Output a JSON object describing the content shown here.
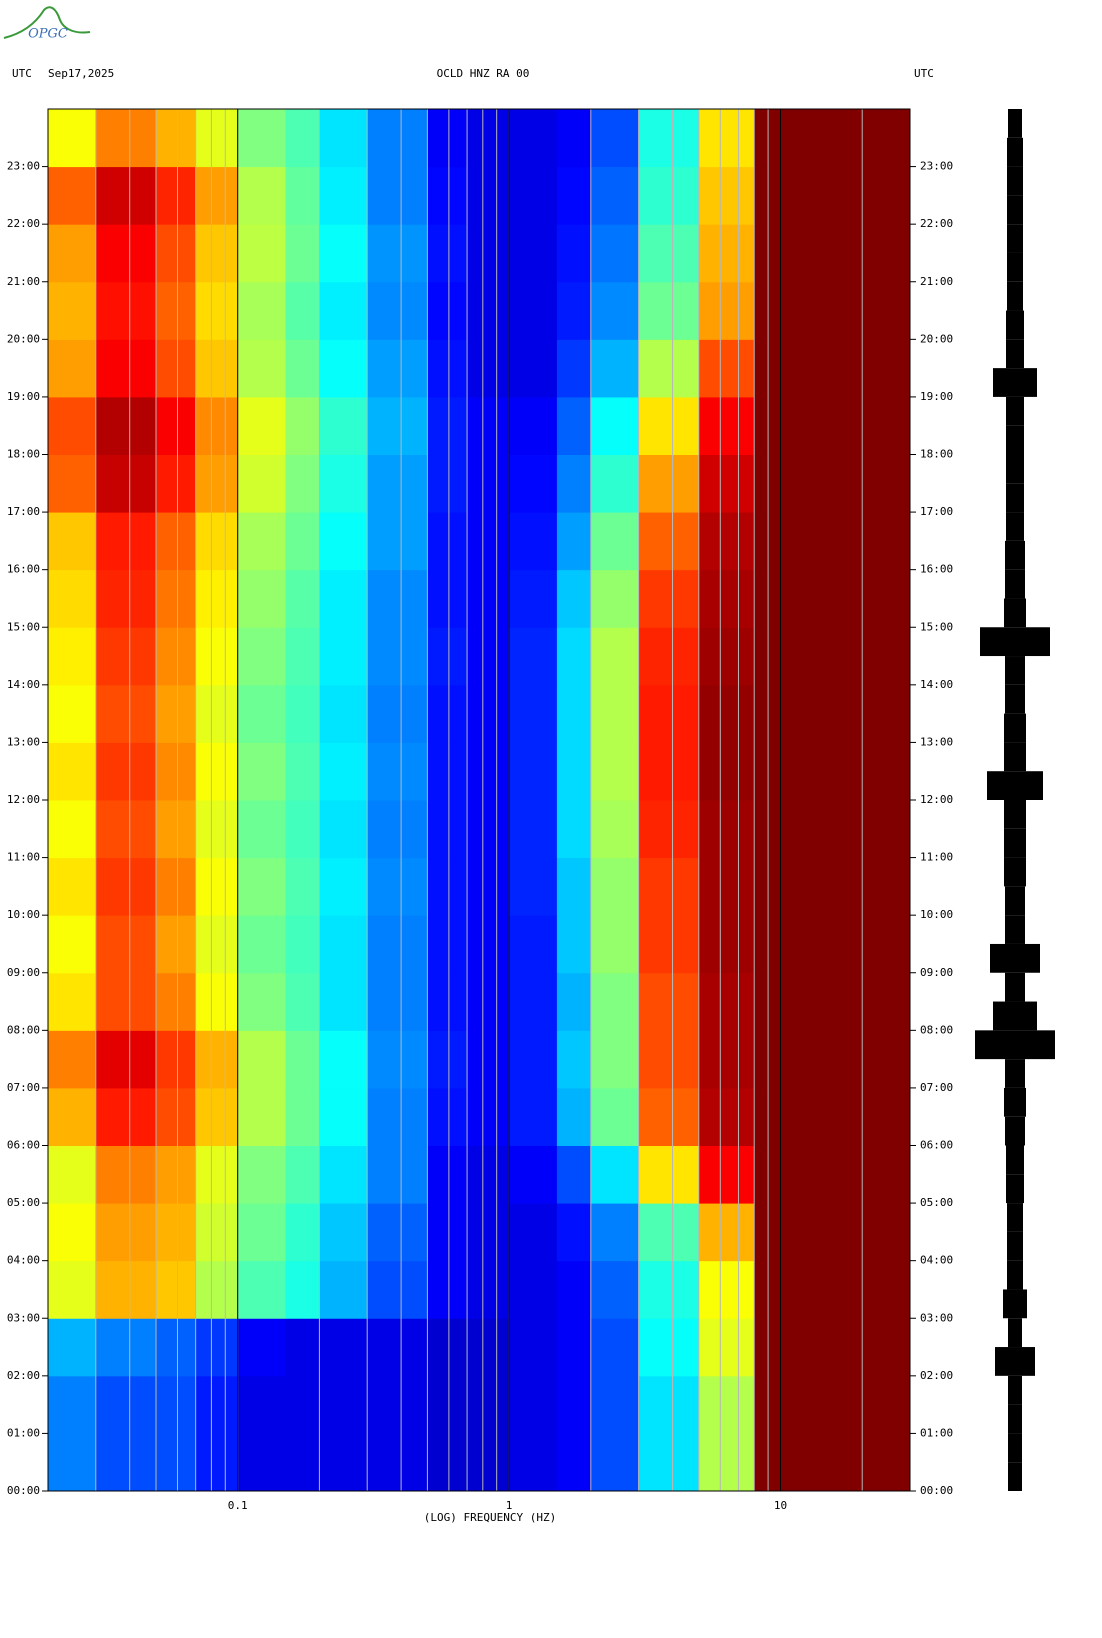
{
  "chart_data": {
    "type": "spectrogram",
    "logo": "OPGC",
    "timezone": "UTC",
    "date": "Sep17,2025",
    "title": "OCLD HNZ RA 00",
    "xlabel": "(LOG) FREQUENCY (HZ)",
    "xscale": "log",
    "colormap": "jet",
    "xlim": [
      0.02,
      30
    ],
    "xticks": [
      0.1,
      1,
      10
    ],
    "xgrid": [
      0.03,
      0.04,
      0.05,
      0.06,
      0.07,
      0.08,
      0.09,
      0.1,
      0.2,
      0.3,
      0.4,
      0.5,
      0.6,
      0.7,
      0.8,
      0.9,
      1,
      2,
      3,
      4,
      5,
      6,
      7,
      8,
      9,
      10,
      20
    ],
    "ylim": [
      0,
      24
    ],
    "yticks": [
      {
        "value": 0,
        "label": "00:00"
      },
      {
        "value": 1,
        "label": "01:00"
      },
      {
        "value": 2,
        "label": "02:00"
      },
      {
        "value": 3,
        "label": "03:00"
      },
      {
        "value": 4,
        "label": "04:00"
      },
      {
        "value": 5,
        "label": "05:00"
      },
      {
        "value": 6,
        "label": "06:00"
      },
      {
        "value": 7,
        "label": "07:00"
      },
      {
        "value": 8,
        "label": "08:00"
      },
      {
        "value": 9,
        "label": "09:00"
      },
      {
        "value": 10,
        "label": "10:00"
      },
      {
        "value": 11,
        "label": "11:00"
      },
      {
        "value": 12,
        "label": "12:00"
      },
      {
        "value": 13,
        "label": "13:00"
      },
      {
        "value": 14,
        "label": "14:00"
      },
      {
        "value": 15,
        "label": "15:00"
      },
      {
        "value": 16,
        "label": "16:00"
      },
      {
        "value": 17,
        "label": "17:00"
      },
      {
        "value": 18,
        "label": "18:00"
      },
      {
        "value": 19,
        "label": "19:00"
      },
      {
        "value": 20,
        "label": "20:00"
      },
      {
        "value": 21,
        "label": "21:00"
      },
      {
        "value": 22,
        "label": "22:00"
      },
      {
        "value": 23,
        "label": "23:00"
      }
    ],
    "freq_edges": [
      0.02,
      0.03,
      0.05,
      0.07,
      0.1,
      0.15,
      0.2,
      0.3,
      0.5,
      0.7,
      1,
      1.5,
      2,
      3,
      5,
      8,
      30
    ],
    "hours": [
      0,
      1,
      2,
      3,
      4,
      5,
      6,
      7,
      8,
      9,
      10,
      11,
      12,
      13,
      14,
      15,
      16,
      17,
      18,
      19,
      20,
      21,
      22,
      23
    ],
    "levels": [
      [
        0.25,
        0.2,
        0.2,
        0.15,
        0.1,
        0.1,
        0.1,
        0.1,
        0.08,
        0.08,
        0.1,
        0.12,
        0.2,
        0.35,
        0.55,
        1
      ],
      [
        0.25,
        0.2,
        0.2,
        0.15,
        0.1,
        0.1,
        0.1,
        0.1,
        0.08,
        0.08,
        0.1,
        0.12,
        0.2,
        0.35,
        0.55,
        1
      ],
      [
        0.3,
        0.25,
        0.22,
        0.18,
        0.12,
        0.1,
        0.1,
        0.1,
        0.08,
        0.08,
        0.1,
        0.12,
        0.2,
        0.38,
        0.6,
        1
      ],
      [
        0.6,
        0.7,
        0.68,
        0.55,
        0.45,
        0.4,
        0.3,
        0.2,
        0.12,
        0.1,
        0.1,
        0.12,
        0.22,
        0.4,
        0.62,
        1
      ],
      [
        0.62,
        0.72,
        0.7,
        0.58,
        0.48,
        0.42,
        0.32,
        0.22,
        0.12,
        0.1,
        0.1,
        0.14,
        0.25,
        0.45,
        0.7,
        1
      ],
      [
        0.6,
        0.75,
        0.72,
        0.6,
        0.5,
        0.45,
        0.35,
        0.25,
        0.12,
        0.1,
        0.12,
        0.2,
        0.35,
        0.65,
        0.88,
        1
      ],
      [
        0.7,
        0.85,
        0.8,
        0.68,
        0.55,
        0.48,
        0.38,
        0.25,
        0.14,
        0.12,
        0.15,
        0.3,
        0.48,
        0.78,
        0.95,
        1
      ],
      [
        0.75,
        0.9,
        0.82,
        0.7,
        0.55,
        0.48,
        0.38,
        0.26,
        0.15,
        0.12,
        0.15,
        0.32,
        0.5,
        0.8,
        0.96,
        1
      ],
      [
        0.65,
        0.8,
        0.75,
        0.62,
        0.5,
        0.45,
        0.35,
        0.25,
        0.14,
        0.12,
        0.15,
        0.3,
        0.5,
        0.8,
        0.96,
        1
      ],
      [
        0.62,
        0.8,
        0.72,
        0.6,
        0.48,
        0.44,
        0.35,
        0.25,
        0.14,
        0.12,
        0.15,
        0.32,
        0.52,
        0.82,
        0.97,
        1
      ],
      [
        0.65,
        0.82,
        0.75,
        0.62,
        0.5,
        0.45,
        0.36,
        0.26,
        0.14,
        0.12,
        0.16,
        0.32,
        0.52,
        0.82,
        0.97,
        1
      ],
      [
        0.62,
        0.8,
        0.72,
        0.6,
        0.48,
        0.44,
        0.35,
        0.25,
        0.14,
        0.12,
        0.16,
        0.34,
        0.54,
        0.84,
        0.97,
        1
      ],
      [
        0.65,
        0.82,
        0.74,
        0.62,
        0.5,
        0.45,
        0.36,
        0.26,
        0.14,
        0.12,
        0.16,
        0.34,
        0.55,
        0.85,
        0.98,
        1
      ],
      [
        0.62,
        0.8,
        0.72,
        0.6,
        0.48,
        0.44,
        0.35,
        0.25,
        0.14,
        0.12,
        0.16,
        0.34,
        0.55,
        0.85,
        0.98,
        1
      ],
      [
        0.64,
        0.82,
        0.74,
        0.62,
        0.5,
        0.45,
        0.36,
        0.26,
        0.15,
        0.12,
        0.16,
        0.34,
        0.55,
        0.84,
        0.97,
        1
      ],
      [
        0.66,
        0.84,
        0.76,
        0.64,
        0.52,
        0.46,
        0.36,
        0.26,
        0.14,
        0.12,
        0.15,
        0.32,
        0.52,
        0.82,
        0.96,
        1
      ],
      [
        0.68,
        0.85,
        0.78,
        0.66,
        0.54,
        0.48,
        0.38,
        0.28,
        0.14,
        0.12,
        0.14,
        0.28,
        0.48,
        0.78,
        0.95,
        1
      ],
      [
        0.78,
        0.93,
        0.85,
        0.72,
        0.58,
        0.5,
        0.4,
        0.28,
        0.15,
        0.12,
        0.13,
        0.25,
        0.42,
        0.72,
        0.92,
        1
      ],
      [
        0.8,
        0.95,
        0.88,
        0.74,
        0.6,
        0.52,
        0.42,
        0.3,
        0.15,
        0.12,
        0.12,
        0.22,
        0.38,
        0.65,
        0.88,
        1
      ],
      [
        0.72,
        0.88,
        0.8,
        0.68,
        0.55,
        0.48,
        0.38,
        0.28,
        0.14,
        0.1,
        0.1,
        0.18,
        0.3,
        0.55,
        0.8,
        1
      ],
      [
        0.7,
        0.86,
        0.78,
        0.66,
        0.54,
        0.46,
        0.36,
        0.26,
        0.13,
        0.1,
        0.1,
        0.15,
        0.26,
        0.48,
        0.72,
        1
      ],
      [
        0.72,
        0.88,
        0.8,
        0.68,
        0.56,
        0.48,
        0.38,
        0.27,
        0.14,
        0.1,
        0.1,
        0.14,
        0.24,
        0.45,
        0.7,
        1
      ],
      [
        0.78,
        0.92,
        0.84,
        0.72,
        0.55,
        0.47,
        0.36,
        0.25,
        0.13,
        0.1,
        0.1,
        0.13,
        0.22,
        0.42,
        0.68,
        1
      ],
      [
        0.62,
        0.75,
        0.7,
        0.6,
        0.5,
        0.45,
        0.35,
        0.25,
        0.12,
        0.1,
        0.1,
        0.12,
        0.2,
        0.4,
        0.65,
        1
      ]
    ],
    "trace": {
      "color": "#000000",
      "alim": [
        0,
        40
      ],
      "x": [
        0,
        0.5,
        1,
        1.5,
        2,
        2.5,
        3,
        3.5,
        4,
        4.5,
        5,
        5.5,
        6,
        6.5,
        7,
        7.5,
        8,
        8.5,
        9,
        9.5,
        10,
        10.5,
        11,
        11.5,
        12,
        12.5,
        13,
        13.5,
        14,
        14.5,
        15,
        15.5,
        16,
        16.5,
        17,
        17.5,
        18,
        18.5,
        19,
        19.5,
        20,
        20.5,
        21,
        21.5,
        22,
        22.5,
        23,
        23.5
      ],
      "amplitude": [
        7,
        7,
        7,
        7,
        20,
        7,
        12,
        8,
        8,
        8,
        9,
        9,
        10,
        11,
        10,
        40,
        22,
        10,
        25,
        10,
        10,
        11,
        11,
        11,
        28,
        11,
        11,
        10,
        10,
        35,
        11,
        10,
        10,
        9,
        9,
        9,
        9,
        9,
        22,
        9,
        9,
        8,
        8,
        8,
        8,
        8,
        8,
        7
      ]
    }
  }
}
